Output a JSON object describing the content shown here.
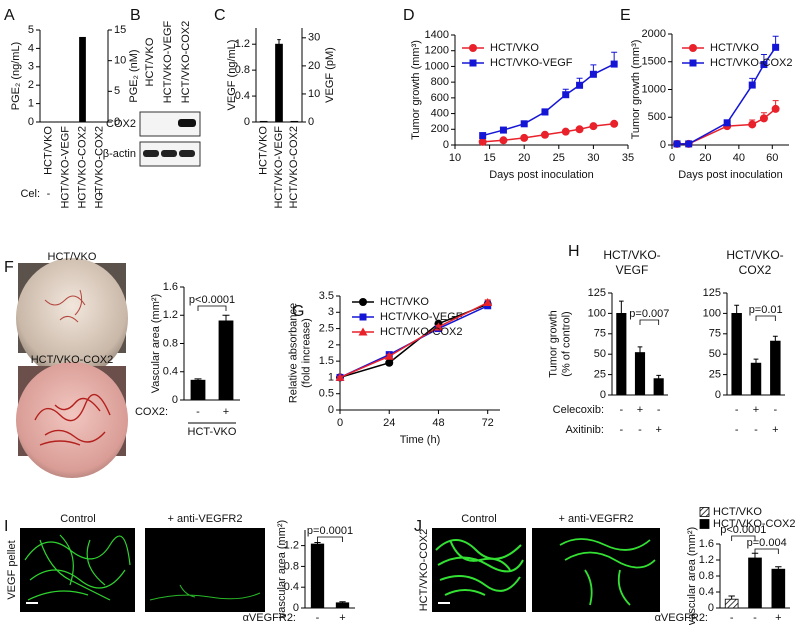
{
  "chart_data": [
    {
      "type": "bar",
      "panel": "A",
      "categories": [
        "HCT/VKO",
        "HCT/VKO-VEGF",
        "HCT/VKO-COX2",
        "HCT/VKO-COX2"
      ],
      "values": [
        0,
        0,
        4.6,
        0
      ],
      "color": "#000000",
      "ylim": [
        0,
        5
      ],
      "yticks": [
        0,
        1,
        2,
        3,
        4,
        5
      ],
      "ylabel": "PGE₂ (ng/mL)",
      "y2lim": [
        0,
        15
      ],
      "y2ticks": [
        0,
        5,
        10,
        15
      ],
      "y2label": "PGE₂ (nM)",
      "treatments": [
        {
          "name": "Cel:",
          "values": [
            "-",
            "-",
            "-",
            "+"
          ]
        }
      ]
    },
    {
      "type": "bar",
      "panel": "C",
      "categories": [
        "HCT/VKO",
        "HCT/VKO-VEGF",
        "HCT/VKO-COX2"
      ],
      "values": [
        0.01,
        1.2,
        0.01
      ],
      "errors": [
        null,
        0.07,
        null
      ],
      "color": "#000000",
      "ylim": [
        0,
        1.45
      ],
      "yticks": [
        0,
        0.4,
        0.8,
        1.2
      ],
      "ylabel": "VEGF (ng/mL)",
      "y2lim": [
        0,
        33.5
      ],
      "y2ticks": [
        0,
        10,
        20,
        30
      ],
      "y2label": "VEGF (pM)"
    },
    {
      "type": "line",
      "panel": "D",
      "x": [
        14,
        17,
        20,
        23,
        26,
        28,
        30,
        33
      ],
      "xlim": [
        10,
        35
      ],
      "xticks": [
        10,
        15,
        20,
        25,
        30,
        35
      ],
      "ylim": [
        0,
        1400
      ],
      "yticks": [
        0,
        200,
        400,
        600,
        800,
        1000,
        1200,
        1400
      ],
      "xlabel": "Days post inoculation",
      "ylabel": "Tumor growth (mm³)",
      "series": [
        {
          "name": "HCT/VKO",
          "color": "#e8212b",
          "marker": "circle",
          "values": [
            40,
            60,
            90,
            130,
            170,
            200,
            240,
            270
          ],
          "errors": [
            5,
            8,
            10,
            15,
            15,
            20,
            25,
            25
          ]
        },
        {
          "name": "HCT/VKO-VEGF",
          "color": "#1515d6",
          "marker": "square",
          "values": [
            120,
            190,
            270,
            420,
            640,
            760,
            900,
            1030
          ],
          "errors": [
            10,
            20,
            25,
            40,
            70,
            90,
            120,
            150
          ]
        }
      ]
    },
    {
      "type": "line",
      "panel": "E",
      "x": [
        3,
        10,
        33,
        48,
        55,
        62
      ],
      "xlim": [
        0,
        70
      ],
      "xticks": [
        0,
        20,
        40,
        60
      ],
      "ylim": [
        0,
        2000
      ],
      "yticks": [
        0,
        500,
        1000,
        1500,
        2000
      ],
      "xlabel": "Days post inoculation",
      "ylabel": "Tumor growth (mm³)",
      "series": [
        {
          "name": "HCT/VKO",
          "color": "#e8212b",
          "marker": "circle",
          "values": [
            20,
            20,
            340,
            370,
            480,
            650
          ],
          "errors": [
            5,
            5,
            40,
            80,
            100,
            150
          ]
        },
        {
          "name": "HCT/VKO-COX2",
          "color": "#1515d6",
          "marker": "square",
          "values": [
            20,
            20,
            400,
            1080,
            1450,
            1760
          ],
          "errors": [
            5,
            5,
            30,
            120,
            180,
            200
          ]
        }
      ]
    },
    {
      "type": "bar",
      "panel": "F",
      "categories": [
        null,
        null
      ],
      "values": [
        0.28,
        1.12
      ],
      "errors": [
        0.02,
        0.08
      ],
      "color": "#000000",
      "ylim": [
        0,
        1.6
      ],
      "yticks": [
        0,
        0.4,
        0.8,
        1.2,
        1.6
      ],
      "ylabel": "Vascular area (mm²)",
      "treatments": [
        {
          "name": "COX2:",
          "values": [
            "-",
            "+"
          ]
        }
      ],
      "group_label": "HCT-VKO",
      "annotations": [
        "p<0.0001"
      ],
      "photo_labels": [
        "HCT/VKO",
        "HCT/VKO-COX2"
      ]
    },
    {
      "type": "line",
      "panel": "G",
      "x": [
        0,
        24,
        48,
        72
      ],
      "xlim": [
        0,
        78
      ],
      "xticks": [
        0,
        24,
        48,
        72
      ],
      "ylim": [
        0,
        3.5
      ],
      "yticks": [
        0,
        0.5,
        1,
        1.5,
        2,
        2.5,
        3,
        3.5
      ],
      "xlabel": "Time (h)",
      "ylabel": [
        "Relative absorbance",
        "(fold increase)"
      ],
      "series": [
        {
          "name": "HCT/VKO",
          "color": "#000000",
          "marker": "circle",
          "values": [
            1,
            1.45,
            2.65,
            3.25
          ],
          "errors": [
            0.02,
            0.05,
            0.08,
            0.08
          ]
        },
        {
          "name": "HCT/VKO-VEGF",
          "color": "#1515d6",
          "marker": "square",
          "values": [
            1,
            1.7,
            2.5,
            3.2
          ],
          "errors": [
            0.02,
            0.05,
            0.05,
            0.15
          ]
        },
        {
          "name": "HCT/VKO-COX2",
          "color": "#e8212b",
          "marker": "triangle",
          "values": [
            1,
            1.65,
            2.55,
            3.3
          ],
          "errors": [
            0.02,
            0.05,
            0.05,
            0.08
          ]
        }
      ]
    },
    {
      "type": "bar",
      "panel": "H",
      "title": [
        "HCT/VKO-",
        "VEGF"
      ],
      "categories": [
        null,
        null,
        null
      ],
      "values": [
        100,
        52,
        20
      ],
      "errors": [
        15,
        7,
        4
      ],
      "color": "#000000",
      "ylim": [
        0,
        125
      ],
      "yticks": [
        0,
        25,
        50,
        75,
        100,
        125
      ],
      "ylabel": [
        "Tumor growth",
        "(% of control)"
      ],
      "treatments": [
        {
          "name": "Celecoxib:",
          "values": [
            "-",
            "+",
            "-"
          ]
        },
        {
          "name": "Axitinib:",
          "values": [
            "-",
            "-",
            "+"
          ]
        }
      ],
      "annotations": [
        "p=0.007"
      ]
    },
    {
      "type": "bar",
      "title": [
        "HCT/VKO-",
        "COX2"
      ],
      "categories": [
        null,
        null,
        null
      ],
      "values": [
        100,
        39,
        66
      ],
      "errors": [
        10,
        5,
        6
      ],
      "color": "#000000",
      "ylim": [
        0,
        125
      ],
      "yticks": [
        0,
        25,
        50,
        75,
        100,
        125
      ],
      "treatments": [
        {
          "values": [
            "-",
            "+",
            "-"
          ]
        },
        {
          "values": [
            "-",
            "-",
            "+"
          ]
        }
      ],
      "annotations": [
        "p=0.01"
      ]
    },
    {
      "type": "bar",
      "panel": "I",
      "categories": [
        null,
        null
      ],
      "values": [
        1.23,
        0.1
      ],
      "errors": [
        0.03,
        0.02
      ],
      "color": "#000000",
      "ylim": [
        0,
        1.5
      ],
      "yticks": [
        0,
        0.4,
        0.8,
        1.2
      ],
      "ylabel": "vascular area (mm²)",
      "treatments": [
        {
          "name": "αVEGFR2:",
          "values": [
            "-",
            "+"
          ]
        }
      ],
      "annotations": [
        "p=0.0001"
      ],
      "photo_labels": [
        "Control",
        "+ anti-VEGFR2"
      ],
      "side_label": "VEGF pellet"
    },
    {
      "type": "bar",
      "panel": "J",
      "categories": [
        null,
        null,
        null
      ],
      "ylim": [
        0,
        1.6
      ],
      "yticks": [
        0,
        0.4,
        0.8,
        1.2,
        1.6
      ],
      "ylabel": "vascular area (mm²)",
      "series": [
        {
          "name": "HCT/VKO",
          "color": "#000000",
          "pattern": "hatch",
          "values": [
            0.22,
            null,
            null
          ],
          "errors": [
            0.08,
            null,
            null
          ]
        },
        {
          "name": "HCT/VKO-COX2",
          "color": "#000000",
          "values": [
            null,
            1.25,
            0.97
          ],
          "errors": [
            null,
            0.12,
            0.06
          ]
        }
      ],
      "treatments": [
        {
          "name": "αVEGFR2:",
          "values": [
            "-",
            "-",
            "+"
          ]
        }
      ],
      "annotations": [
        "p<0.0001",
        "p=0.004"
      ],
      "photo_labels": [
        "Control",
        "+ anti-VEGFR2"
      ],
      "side_label": "HCT/VKO-COX2"
    }
  ],
  "blot": {
    "panel": "B",
    "lanes": [
      "HCT/VKO",
      "HCT/VKO-VEGF",
      "HCT/VKO-COX2"
    ],
    "rows": [
      "COX2",
      "β-actin"
    ]
  }
}
